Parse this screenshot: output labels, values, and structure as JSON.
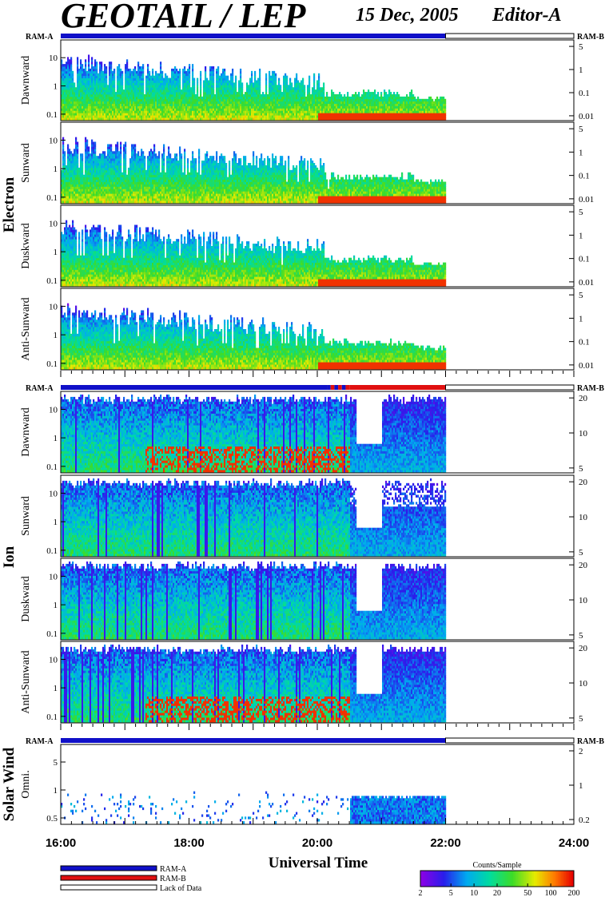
{
  "header": {
    "title": "GEOTAIL / LEP",
    "date": "15 Dec, 2005",
    "editor": "Editor-A"
  },
  "colors": {
    "ram_a": "#1010c8",
    "ram_b": "#e01010",
    "frame": "#000000",
    "background": "#ffffff"
  },
  "chart_data": {
    "type": "heatmap",
    "x_axis": {
      "label": "Universal Time",
      "range_hours": [
        16,
        24
      ],
      "tick_labels": [
        "16:00",
        "18:00",
        "20:00",
        "22:00",
        "24:00"
      ],
      "tick_values": [
        16,
        18,
        20,
        22,
        24
      ],
      "data_end_hour": 22
    },
    "groups": [
      {
        "name": "Electron",
        "ram_bar": {
          "left_label": "RAM-A",
          "right_label": "RAM-B",
          "segments": [
            {
              "start": 16,
              "end": 22,
              "mode": "RAM-A"
            },
            {
              "start": 22,
              "end": 24,
              "mode": "none"
            }
          ]
        },
        "panels": [
          {
            "name": "Dawnward",
            "left_ticks": [
              "10",
              "1",
              "0.1"
            ],
            "right_ticks": [
              "5",
              "1",
              "0.1",
              "0.01"
            ]
          },
          {
            "name": "Sunward",
            "left_ticks": [
              "10",
              "1",
              "0.1"
            ],
            "right_ticks": [
              "5",
              "1",
              "0.1",
              "0.01"
            ]
          },
          {
            "name": "Duskward",
            "left_ticks": [
              "10",
              "1",
              "0.1"
            ],
            "right_ticks": [
              "5",
              "1",
              "0.1",
              "0.01"
            ]
          },
          {
            "name": "Anti-Sunward",
            "left_ticks": [
              "10",
              "1",
              "0.1"
            ],
            "right_ticks": [
              "5",
              "1",
              "0.1",
              "0.01"
            ]
          }
        ]
      },
      {
        "name": "Ion",
        "ram_bar": {
          "left_label": "RAM-A",
          "right_label": "RAM-B",
          "segments": [
            {
              "start": 16,
              "end": 20.15,
              "mode": "RAM-A"
            },
            {
              "start": 20.15,
              "end": 20.5,
              "mode": "mixed"
            },
            {
              "start": 20.5,
              "end": 22,
              "mode": "RAM-B"
            },
            {
              "start": 22,
              "end": 24,
              "mode": "none"
            }
          ]
        },
        "panels": [
          {
            "name": "Dawnward",
            "left_ticks": [
              "10",
              "1",
              "0.1"
            ],
            "right_ticks": [
              "20",
              "10",
              "5"
            ]
          },
          {
            "name": "Sunward",
            "left_ticks": [
              "10",
              "1",
              "0.1"
            ],
            "right_ticks": [
              "20",
              "10",
              "5"
            ]
          },
          {
            "name": "Duskward",
            "left_ticks": [
              "10",
              "1",
              "0.1"
            ],
            "right_ticks": [
              "20",
              "10",
              "5"
            ]
          },
          {
            "name": "Anti-Sunward",
            "left_ticks": [
              "10",
              "1",
              "0.1"
            ],
            "right_ticks": [
              "20",
              "10",
              "5"
            ]
          }
        ]
      },
      {
        "name": "Solar Wind",
        "ram_bar": {
          "left_label": "RAM-A",
          "right_label": "RAM-B",
          "segments": [
            {
              "start": 16,
              "end": 22,
              "mode": "RAM-A"
            },
            {
              "start": 22,
              "end": 24,
              "mode": "none"
            }
          ]
        },
        "panels": [
          {
            "name": "Omni.",
            "left_ticks": [
              "5",
              "1",
              "0.5"
            ],
            "right_ticks": [
              "2",
              "1",
              "0.2"
            ]
          }
        ]
      }
    ],
    "legend": {
      "items": [
        {
          "label": "RAM-A",
          "color": "#1010c8"
        },
        {
          "label": "RAM-B",
          "color": "#e01010"
        },
        {
          "label": "Lack of Data",
          "color": "#ffffff"
        }
      ]
    },
    "colorbar": {
      "title": "Counts/Sample",
      "range": [
        2,
        200
      ],
      "scale": "log",
      "tick_labels": [
        "2",
        "5",
        "10",
        "20",
        "50",
        "100",
        "200"
      ],
      "tick_values": [
        2,
        5,
        10,
        20,
        50,
        100,
        200
      ]
    }
  }
}
